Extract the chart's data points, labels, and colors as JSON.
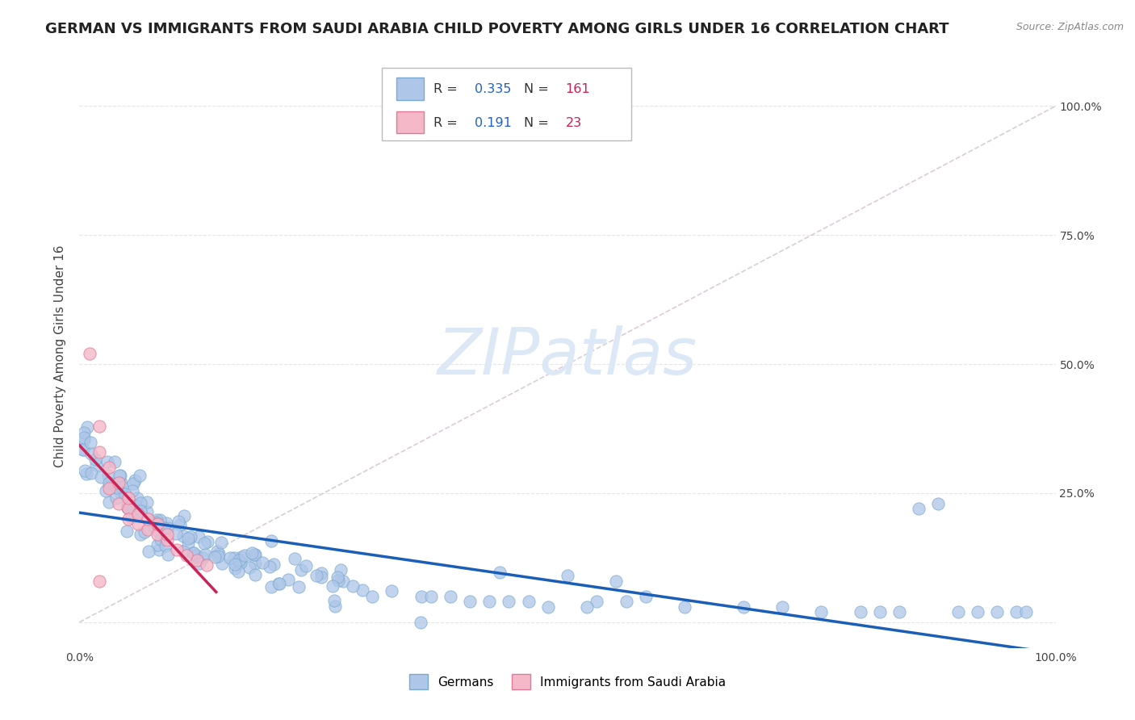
{
  "title": "GERMAN VS IMMIGRANTS FROM SAUDI ARABIA CHILD POVERTY AMONG GIRLS UNDER 16 CORRELATION CHART",
  "source": "Source: ZipAtlas.com",
  "ylabel": "Child Poverty Among Girls Under 16",
  "xlim": [
    0,
    1
  ],
  "ylim": [
    -0.05,
    1.08
  ],
  "german_R": 0.335,
  "german_N": 161,
  "saudi_R": 0.191,
  "saudi_N": 23,
  "german_color": "#aec6e8",
  "german_edge": "#7aaad0",
  "saudi_color": "#f5b8c8",
  "saudi_edge": "#e07898",
  "trend_german_color": "#1a5eb8",
  "trend_saudi_color": "#cc2255",
  "legend_val_color": "#2060cc",
  "legend_n_color": "#cc2255",
  "watermark_color": "#dce8f5",
  "background_color": "#ffffff",
  "grid_color": "#dde8f0",
  "ref_line_color": "#c8b8c8",
  "title_fontsize": 13,
  "axis_label_fontsize": 11,
  "tick_fontsize": 10,
  "right_ytick_labels": [
    "25.0%",
    "50.0%",
    "75.0%",
    "100.0%"
  ],
  "right_ytick_positions": [
    0.25,
    0.5,
    0.75,
    1.0
  ],
  "xtick_labels": [
    "0.0%",
    "100.0%"
  ],
  "xtick_positions": [
    0.0,
    1.0
  ]
}
